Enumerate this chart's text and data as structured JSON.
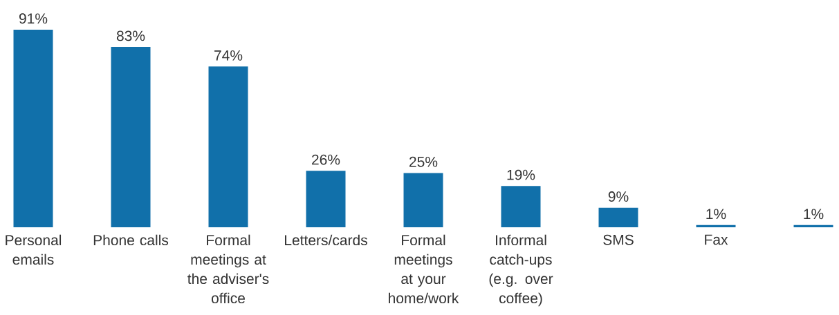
{
  "chart_data": {
    "type": "bar",
    "color": "#1170aa",
    "categories": [
      "Personal emails",
      "Phone calls",
      "Formal meetings at the adviser's office",
      "Letters/cards",
      "Formal meetings at your home/work",
      "Informal catch-ups (e.g. over coffee)",
      "SMS",
      "Fax",
      null
    ],
    "values": [
      91,
      83,
      74,
      26,
      25,
      19,
      9,
      1,
      1
    ],
    "value_labels": [
      "91%",
      "83%",
      "74%",
      "26%",
      "25%",
      "19%",
      "9%",
      "1%",
      "1%"
    ]
  }
}
